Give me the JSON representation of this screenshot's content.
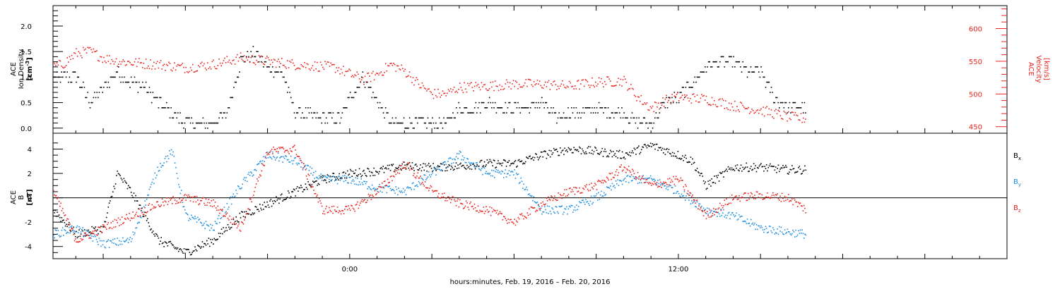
{
  "colors": {
    "axes": "#000000",
    "density": "#000000",
    "velocity": "#e8231e",
    "bx": "#000000",
    "by": "#1f8fe0",
    "bz": "#e8231e",
    "zero_line": "#000000"
  },
  "xlabel": "hours:minutes, Feb. 19, 2016 – Feb. 20, 2016",
  "chart_data": [
    {
      "type": "scatter",
      "panel": "top",
      "x_range": [
        "2016-02-19 13:10",
        "2016-02-21 00:00"
      ],
      "x_ticks": [
        {
          "time": "2016-02-20 00:00",
          "label": "0:00"
        },
        {
          "time": "2016-02-20 12:00",
          "label": "12:00"
        }
      ],
      "left_axis": {
        "label_lines": [
          "ACE",
          "Ion Density"
        ],
        "unit": "[cm⁻³]",
        "ylim": [
          -0.1,
          2.4
        ],
        "ticks": [
          "0.0",
          "0.5",
          "1.0",
          "1.5",
          "2.0"
        ]
      },
      "right_axis": {
        "label_lines": [
          "ACE",
          "Velocity"
        ],
        "unit": "[km/s]",
        "ylim": [
          440,
          635
        ],
        "ticks": [
          "450",
          "500",
          "550",
          "600"
        ]
      },
      "series": [
        {
          "key": "density",
          "axis": "left",
          "points": [
            [
              "2016-02-19 13:10",
              1.0
            ],
            [
              "2016-02-19 14:00",
              1.0
            ],
            [
              "2016-02-19 14:30",
              0.5
            ],
            [
              "2016-02-19 15:00",
              0.8
            ],
            [
              "2016-02-19 15:30",
              1.1
            ],
            [
              "2016-02-19 16:00",
              0.9
            ],
            [
              "2016-02-19 16:30",
              0.8
            ],
            [
              "2016-02-19 17:00",
              0.5
            ],
            [
              "2016-02-19 17:30",
              0.3
            ],
            [
              "2016-02-19 18:00",
              0.1
            ],
            [
              "2016-02-19 19:00",
              0.1
            ],
            [
              "2016-02-19 19:30",
              0.3
            ],
            [
              "2016-02-19 20:00",
              1.3
            ],
            [
              "2016-02-19 20:30",
              1.5
            ],
            [
              "2016-02-19 21:00",
              1.2
            ],
            [
              "2016-02-19 21:30",
              1.1
            ],
            [
              "2016-02-19 22:00",
              0.3
            ],
            [
              "2016-02-19 23:00",
              0.2
            ],
            [
              "2016-02-19 23:40",
              0.2
            ],
            [
              "2016-02-20 00:00",
              0.6
            ],
            [
              "2016-02-20 00:30",
              1.0
            ],
            [
              "2016-02-20 01:00",
              0.5
            ],
            [
              "2016-02-20 01:30",
              0.1
            ],
            [
              "2016-02-20 02:30",
              0.1
            ],
            [
              "2016-02-20 03:30",
              0.1
            ],
            [
              "2016-02-20 04:00",
              0.4
            ],
            [
              "2016-02-20 04:30",
              0.4
            ],
            [
              "2016-02-20 05:00",
              0.5
            ],
            [
              "2016-02-20 05:30",
              0.4
            ],
            [
              "2016-02-20 06:00",
              0.4
            ],
            [
              "2016-02-20 06:30",
              0.4
            ],
            [
              "2016-02-20 07:00",
              0.5
            ],
            [
              "2016-02-20 07:30",
              0.2
            ],
            [
              "2016-02-20 08:00",
              0.3
            ],
            [
              "2016-02-20 08:30",
              0.3
            ],
            [
              "2016-02-20 09:00",
              0.4
            ],
            [
              "2016-02-20 09:30",
              0.3
            ],
            [
              "2016-02-20 10:00",
              0.3
            ],
            [
              "2016-02-20 10:30",
              0.1
            ],
            [
              "2016-02-20 11:00",
              0.1
            ],
            [
              "2016-02-20 11:30",
              0.5
            ],
            [
              "2016-02-20 12:00",
              0.6
            ],
            [
              "2016-02-20 12:30",
              0.9
            ],
            [
              "2016-02-20 13:00",
              1.2
            ],
            [
              "2016-02-20 13:30",
              1.3
            ],
            [
              "2016-02-20 14:00",
              1.3
            ],
            [
              "2016-02-20 14:30",
              1.1
            ],
            [
              "2016-02-20 15:00",
              1.1
            ],
            [
              "2016-02-20 15:30",
              0.6
            ],
            [
              "2016-02-20 16:00",
              0.4
            ],
            [
              "2016-02-20 16:40",
              0.4
            ]
          ]
        },
        {
          "key": "velocity",
          "axis": "right",
          "points": [
            [
              "2016-02-19 13:10",
              542
            ],
            [
              "2016-02-19 13:30",
              545
            ],
            [
              "2016-02-19 14:00",
              562
            ],
            [
              "2016-02-19 14:30",
              565
            ],
            [
              "2016-02-19 15:00",
              555
            ],
            [
              "2016-02-19 15:30",
              550
            ],
            [
              "2016-02-19 16:00",
              548
            ],
            [
              "2016-02-19 17:00",
              545
            ],
            [
              "2016-02-19 18:00",
              540
            ],
            [
              "2016-02-19 19:00",
              545
            ],
            [
              "2016-02-19 20:00",
              555
            ],
            [
              "2016-02-19 21:00",
              550
            ],
            [
              "2016-02-19 22:00",
              545
            ],
            [
              "2016-02-19 23:00",
              542
            ],
            [
              "2016-02-19 23:30",
              540
            ],
            [
              "2016-02-20 00:00",
              530
            ],
            [
              "2016-02-20 00:30",
              522
            ],
            [
              "2016-02-20 01:00",
              530
            ],
            [
              "2016-02-20 01:30",
              545
            ],
            [
              "2016-02-20 02:00",
              535
            ],
            [
              "2016-02-20 02:30",
              515
            ],
            [
              "2016-02-20 03:00",
              500
            ],
            [
              "2016-02-20 03:30",
              500
            ],
            [
              "2016-02-20 04:00",
              510
            ],
            [
              "2016-02-20 05:00",
              512
            ],
            [
              "2016-02-20 06:00",
              515
            ],
            [
              "2016-02-20 07:00",
              515
            ],
            [
              "2016-02-20 08:00",
              512
            ],
            [
              "2016-02-20 09:00",
              518
            ],
            [
              "2016-02-20 10:00",
              520
            ],
            [
              "2016-02-20 10:30",
              495
            ],
            [
              "2016-02-20 11:00",
              478
            ],
            [
              "2016-02-20 11:30",
              490
            ],
            [
              "2016-02-20 12:00",
              495
            ],
            [
              "2016-02-20 13:00",
              492
            ],
            [
              "2016-02-20 14:00",
              482
            ],
            [
              "2016-02-20 15:00",
              475
            ],
            [
              "2016-02-20 16:00",
              465
            ],
            [
              "2016-02-20 16:40",
              462
            ]
          ]
        }
      ]
    },
    {
      "type": "scatter",
      "panel": "bottom",
      "x_range": [
        "2016-02-19 13:10",
        "2016-02-21 00:00"
      ],
      "left_axis": {
        "label_lines": [
          "ACE",
          "B"
        ],
        "unit": "[nT]",
        "ylim": [
          -5.0,
          5.3
        ],
        "ticks": [
          "-4",
          "-2",
          "0",
          "2",
          "4"
        ]
      },
      "zero_line": 0,
      "legend_position": "right",
      "series": [
        {
          "key": "bx",
          "name": "B",
          "subscript": "x",
          "points": [
            [
              "2016-02-19 13:10",
              -1.0
            ],
            [
              "2016-02-19 14:00",
              -3.0
            ],
            [
              "2016-02-19 15:00",
              -2.5
            ],
            [
              "2016-02-19 15:30",
              2.0
            ],
            [
              "2016-02-19 16:00",
              0.5
            ],
            [
              "2016-02-19 17:00",
              -3.5
            ],
            [
              "2016-02-19 18:00",
              -4.5
            ],
            [
              "2016-02-19 19:00",
              -3.5
            ],
            [
              "2016-02-19 20:00",
              -1.5
            ],
            [
              "2016-02-19 21:00",
              -0.5
            ],
            [
              "2016-02-19 22:00",
              0.5
            ],
            [
              "2016-02-19 23:00",
              1.5
            ],
            [
              "2016-02-20 00:00",
              2.0
            ],
            [
              "2016-02-20 01:00",
              2.2
            ],
            [
              "2016-02-20 02:00",
              2.6
            ],
            [
              "2016-02-20 03:00",
              2.5
            ],
            [
              "2016-02-20 04:00",
              2.6
            ],
            [
              "2016-02-20 05:00",
              2.8
            ],
            [
              "2016-02-20 06:00",
              2.8
            ],
            [
              "2016-02-20 07:00",
              3.5
            ],
            [
              "2016-02-20 08:00",
              4.0
            ],
            [
              "2016-02-20 09:00",
              3.8
            ],
            [
              "2016-02-20 10:00",
              3.5
            ],
            [
              "2016-02-20 11:00",
              4.3
            ],
            [
              "2016-02-20 12:00",
              3.5
            ],
            [
              "2016-02-20 12:30",
              3.0
            ],
            [
              "2016-02-20 13:00",
              1.0
            ],
            [
              "2016-02-20 14:00",
              2.5
            ],
            [
              "2016-02-20 15:00",
              2.5
            ],
            [
              "2016-02-20 16:00",
              2.3
            ],
            [
              "2016-02-20 16:40",
              2.3
            ]
          ]
        },
        {
          "key": "by",
          "name": "B",
          "subscript": "y",
          "points": [
            [
              "2016-02-19 13:10",
              -3.0
            ],
            [
              "2016-02-19 14:00",
              -2.5
            ],
            [
              "2016-02-19 15:00",
              -3.8
            ],
            [
              "2016-02-19 16:00",
              -3.5
            ],
            [
              "2016-02-19 17:00",
              2.5
            ],
            [
              "2016-02-19 17:30",
              3.8
            ],
            [
              "2016-02-19 18:00",
              -1.5
            ],
            [
              "2016-02-19 19:00",
              -2.5
            ],
            [
              "2016-02-19 20:00",
              1.0
            ],
            [
              "2016-02-19 21:00",
              3.5
            ],
            [
              "2016-02-19 22:00",
              3.0
            ],
            [
              "2016-02-19 23:00",
              1.5
            ],
            [
              "2016-02-20 00:00",
              1.5
            ],
            [
              "2016-02-20 01:00",
              0.8
            ],
            [
              "2016-02-20 02:00",
              0.5
            ],
            [
              "2016-02-20 03:00",
              2.0
            ],
            [
              "2016-02-20 04:00",
              3.5
            ],
            [
              "2016-02-20 05:00",
              2.0
            ],
            [
              "2016-02-20 06:00",
              2.0
            ],
            [
              "2016-02-20 07:00",
              -1.0
            ],
            [
              "2016-02-20 08:00",
              -1.0
            ],
            [
              "2016-02-20 09:00",
              0.0
            ],
            [
              "2016-02-20 10:00",
              1.5
            ],
            [
              "2016-02-20 11:00",
              1.5
            ],
            [
              "2016-02-20 12:00",
              0.5
            ],
            [
              "2016-02-20 13:00",
              -1.0
            ],
            [
              "2016-02-20 14:00",
              -1.5
            ],
            [
              "2016-02-20 15:00",
              -2.5
            ],
            [
              "2016-02-20 16:00",
              -2.8
            ],
            [
              "2016-02-20 16:40",
              -3.0
            ]
          ]
        },
        {
          "key": "bz",
          "name": "B",
          "subscript": "z",
          "points": [
            [
              "2016-02-19 13:10",
              0.5
            ],
            [
              "2016-02-19 14:00",
              -3.5
            ],
            [
              "2016-02-19 15:00",
              -2.5
            ],
            [
              "2016-02-19 16:00",
              -1.5
            ],
            [
              "2016-02-19 17:00",
              -0.5
            ],
            [
              "2016-02-19 18:00",
              0.0
            ],
            [
              "2016-02-19 19:00",
              -0.5
            ],
            [
              "2016-02-19 20:00",
              -2.5
            ],
            [
              "2016-02-19 21:00",
              3.8
            ],
            [
              "2016-02-19 22:00",
              4.0
            ],
            [
              "2016-02-19 23:00",
              -1.0
            ],
            [
              "2016-02-20 00:00",
              -1.0
            ],
            [
              "2016-02-20 01:00",
              0.5
            ],
            [
              "2016-02-20 02:00",
              2.8
            ],
            [
              "2016-02-20 03:00",
              0.5
            ],
            [
              "2016-02-20 04:00",
              -0.5
            ],
            [
              "2016-02-20 05:00",
              -1.0
            ],
            [
              "2016-02-20 06:00",
              -2.0
            ],
            [
              "2016-02-20 07:00",
              -0.5
            ],
            [
              "2016-02-20 08:00",
              0.5
            ],
            [
              "2016-02-20 09:00",
              1.0
            ],
            [
              "2016-02-20 10:00",
              2.5
            ],
            [
              "2016-02-20 11:00",
              1.0
            ],
            [
              "2016-02-20 12:00",
              1.5
            ],
            [
              "2016-02-20 13:00",
              -1.5
            ],
            [
              "2016-02-20 14:00",
              0.0
            ],
            [
              "2016-02-20 15:00",
              0.2
            ],
            [
              "2016-02-20 16:00",
              0.0
            ],
            [
              "2016-02-20 16:40",
              -1.0
            ]
          ]
        }
      ]
    }
  ]
}
